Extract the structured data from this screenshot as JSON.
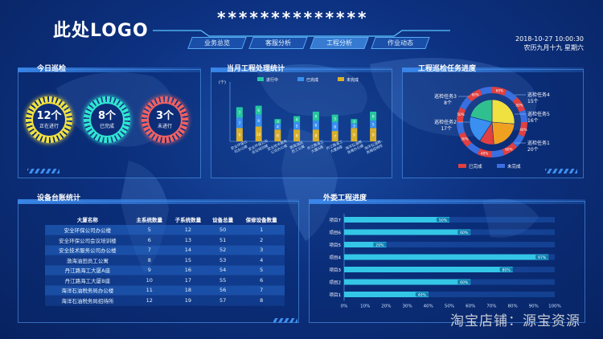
{
  "header": {
    "logo": "此处LOGO",
    "title": "**************"
  },
  "nav": {
    "tabs": [
      "业务总览",
      "客服分析",
      "工程分析",
      "作业动态"
    ],
    "active": 2
  },
  "datetime": {
    "line1": "2018-10-27  10:00:30",
    "line2": "农历九月十九  星期六"
  },
  "patrol": {
    "title": "今日巡检",
    "items": [
      {
        "num": "12个",
        "label": "正在进行",
        "color": "#f0e040"
      },
      {
        "num": "8个",
        "label": "已完成",
        "color": "#2fe6d0"
      },
      {
        "num": "3个",
        "label": "未进行",
        "color": "#f06060"
      }
    ]
  },
  "bar_panel": {
    "title": "当月工程处理统计"
  },
  "pie_panel": {
    "title": "工程巡检任务进度"
  },
  "table_panel": {
    "title": "设备台账统计",
    "headers": [
      "大厦名称",
      "主系统数量",
      "子系统数量",
      "设备总量",
      "保修设备数量"
    ],
    "rows": [
      [
        "安全环保公司办公楼",
        "5",
        "12",
        "50",
        "1"
      ],
      [
        "安全环保公司会议培训楼",
        "6",
        "13",
        "51",
        "2"
      ],
      [
        "安全技术服务公司办公楼",
        "7",
        "14",
        "52",
        "3"
      ],
      [
        "渤海油田员工公寓",
        "8",
        "15",
        "53",
        "4"
      ],
      [
        "丹江路海工大厦A座",
        "9",
        "16",
        "54",
        "5"
      ],
      [
        "丹江路海工大厦B座",
        "10",
        "17",
        "55",
        "6"
      ],
      [
        "海洋石油税务局办公楼",
        "11",
        "18",
        "56",
        "7"
      ],
      [
        "海洋石油税务局招待所",
        "12",
        "19",
        "57",
        "8"
      ]
    ]
  },
  "hbar_panel": {
    "title": "外委工程进度"
  },
  "watermark": "淘宝店铺：源宝资源",
  "chart_data": [
    {
      "type": "bar",
      "stacked": true,
      "categories": [
        "安全环保公司办公楼",
        "安全环保公司会议培训楼",
        "安全技术服务公司办公楼",
        "渤海油田员工公寓",
        "丹江路海工大厦A座",
        "丹江路海工大厦B座",
        "海洋石油税务局办公楼",
        "海洋石油税务局招待所"
      ],
      "unit_label": "(个)",
      "series": [
        {
          "name": "进行中",
          "color": "#25c7a0",
          "values": [
            7,
            6,
            3,
            4,
            6,
            5,
            3,
            6
          ]
        },
        {
          "name": "已完成",
          "color": "#3a8ff0",
          "values": [
            7,
            8,
            4,
            5,
            6,
            6,
            3,
            5
          ]
        },
        {
          "name": "未完成",
          "color": "#d9b02c",
          "values": [
            9,
            10,
            8,
            8,
            8,
            7,
            9,
            9
          ]
        }
      ],
      "ylim": [
        0,
        40
      ]
    },
    {
      "type": "pie",
      "callouts": [
        {
          "label": "巡检任务3",
          "value": "8个"
        },
        {
          "label": "巡检任务2",
          "value": "17个"
        },
        {
          "label": "巡检任务4",
          "value": "15个"
        },
        {
          "label": "巡检任务5",
          "value": "16个"
        },
        {
          "label": "巡检任务1",
          "value": "20个"
        }
      ],
      "slices": [
        {
          "name": "巡检任务1",
          "value": 20,
          "color": "#f0e040"
        },
        {
          "name": "巡检任务2",
          "value": 17,
          "color": "#f0a020"
        },
        {
          "name": "巡检任务3",
          "value": 8,
          "color": "#e04040"
        },
        {
          "name": "巡检任务4",
          "value": 15,
          "color": "#3a8ff0"
        },
        {
          "name": "巡检任务5",
          "value": 16,
          "color": "#30c090"
        }
      ],
      "ring_labels": [
        "60%",
        "50%",
        "40%",
        "60%",
        "40%",
        "30%",
        "50%",
        "60%"
      ],
      "legend": [
        {
          "name": "已完成",
          "color": "#e04040"
        },
        {
          "name": "未完成",
          "color": "#3a6fe0"
        }
      ]
    },
    {
      "type": "bar",
      "orientation": "horizontal",
      "categories": [
        "项目7",
        "项目6",
        "项目5",
        "项目4",
        "项目3",
        "项目2",
        "项目1"
      ],
      "values": [
        50,
        60,
        20,
        97,
        80,
        60,
        40
      ],
      "xlim": [
        0,
        100
      ],
      "xticks": [
        "0%",
        "10%",
        "20%",
        "30%",
        "40%",
        "50%",
        "60%",
        "70%",
        "80%",
        "90%",
        "100%"
      ]
    }
  ]
}
